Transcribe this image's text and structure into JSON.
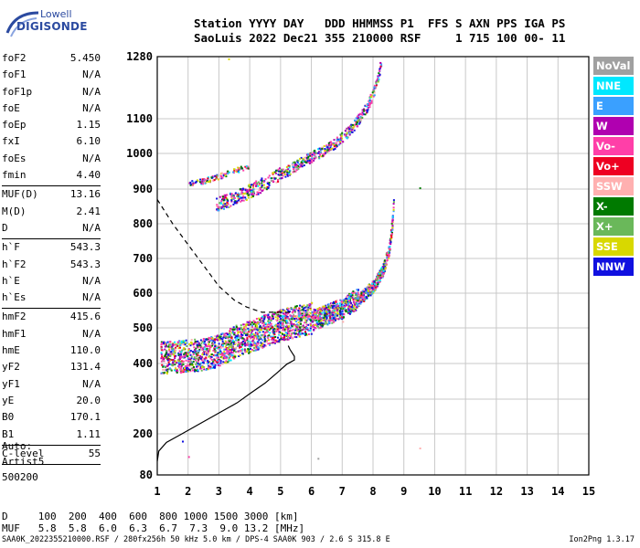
{
  "logo": {
    "line1": "Lowell",
    "line2": "DIGISONDE"
  },
  "header": {
    "line1": "Station YYYY DAY   DDD HHMMSS P1  FFS S AXN PPS IGA PS",
    "line2": "SaoLuis 2022 Dec21 355 210000 RSF     1 715 100 00- 11"
  },
  "params": {
    "group1": [
      {
        "name": "foF2",
        "value": "5.450"
      },
      {
        "name": "foF1",
        "value": "N/A"
      },
      {
        "name": "foF1p",
        "value": "N/A"
      },
      {
        "name": "foE",
        "value": "N/A"
      },
      {
        "name": "foEp",
        "value": "1.15"
      },
      {
        "name": "fxI",
        "value": "6.10"
      },
      {
        "name": "foEs",
        "value": "N/A"
      },
      {
        "name": "fmin",
        "value": "4.40"
      }
    ],
    "group2": [
      {
        "name": "MUF(D)",
        "value": "13.16"
      },
      {
        "name": "M(D)",
        "value": "2.41"
      },
      {
        "name": "D",
        "value": "N/A"
      }
    ],
    "group3": [
      {
        "name": "h`F",
        "value": "543.3"
      },
      {
        "name": "h`F2",
        "value": "543.3"
      },
      {
        "name": "h`E",
        "value": "N/A"
      },
      {
        "name": "h`Es",
        "value": "N/A"
      }
    ],
    "group4": [
      {
        "name": "hmF2",
        "value": "415.6"
      },
      {
        "name": "hmF1",
        "value": "N/A"
      },
      {
        "name": "hmE",
        "value": "110.0"
      },
      {
        "name": "yF2",
        "value": "131.4"
      },
      {
        "name": "yF1",
        "value": "N/A"
      },
      {
        "name": "yE",
        "value": "20.0"
      },
      {
        "name": "B0",
        "value": "170.1"
      },
      {
        "name": "B1",
        "value": "1.11"
      }
    ],
    "group5": [
      {
        "name": "C-level",
        "value": "55"
      }
    ]
  },
  "auto": {
    "line1": "Auto:",
    "line2": "Artist5",
    "line3": "500200"
  },
  "dmuf": {
    "line1": "D     100  200  400  600  800 1000 1500 3000 [km]",
    "line2": "MUF   5.8  5.8  6.0  6.3  6.7  7.3  9.0 13.2 [MHz]"
  },
  "footer": "SAA0K_2022355210000.RSF / 280fx256h 50 kHz 5.0 km / DPS-4 SAA0K 903 / 2.6 S 315.8 E",
  "version": "Ion2Png 1.3.17",
  "legend": [
    {
      "label": "NoVal",
      "color": "#a0a0a0"
    },
    {
      "label": "NNE",
      "color": "#00e8ff"
    },
    {
      "label": "E",
      "color": "#3aa0ff"
    },
    {
      "label": "W",
      "color": "#b000b0"
    },
    {
      "label": "Vo-",
      "color": "#ff3fa8"
    },
    {
      "label": "Vo+",
      "color": "#ee0022"
    },
    {
      "label": "SSW",
      "color": "#ffb0b0"
    },
    {
      "label": "X-",
      "color": "#007a00"
    },
    {
      "label": "X+",
      "color": "#6ab85a"
    },
    {
      "label": "SSE",
      "color": "#d8d800"
    },
    {
      "label": "NNW",
      "color": "#1010e0"
    }
  ],
  "chart_data": {
    "type": "scatter",
    "title": "",
    "xlabel": "",
    "ylabel": "",
    "x_ticks": [
      1,
      2,
      3,
      4,
      5,
      6,
      7,
      8,
      9,
      10,
      11,
      12,
      13,
      14,
      15
    ],
    "y_ticks": [
      80,
      200,
      300,
      400,
      500,
      600,
      700,
      800,
      900,
      1000,
      1100,
      1280
    ],
    "xlim": [
      1,
      15
    ],
    "ylim": [
      80,
      1280
    ],
    "grid": true,
    "traces": {
      "F2_ordinary": [
        [
          1.1,
          400
        ],
        [
          1.5,
          402
        ],
        [
          2.0,
          405
        ],
        [
          2.5,
          410
        ],
        [
          3.0,
          420
        ],
        [
          3.5,
          445
        ],
        [
          4.0,
          460
        ],
        [
          4.5,
          478
        ],
        [
          5.0,
          492
        ],
        [
          5.5,
          503
        ],
        [
          6.0,
          512
        ],
        [
          6.5,
          528
        ],
        [
          7.0,
          548
        ],
        [
          7.5,
          575
        ],
        [
          8.0,
          615
        ],
        [
          8.3,
          660
        ],
        [
          8.5,
          720
        ],
        [
          8.6,
          790
        ],
        [
          8.65,
          850
        ]
      ],
      "F2_second_hop": [
        [
          2.9,
          850
        ],
        [
          3.3,
          862
        ],
        [
          3.8,
          880
        ],
        [
          4.3,
          902
        ],
        [
          4.8,
          928
        ],
        [
          5.3,
          952
        ],
        [
          5.8,
          978
        ],
        [
          6.3,
          1000
        ],
        [
          6.8,
          1028
        ],
        [
          7.3,
          1068
        ],
        [
          7.8,
          1130
        ],
        [
          8.1,
          1195
        ],
        [
          8.25,
          1260
        ]
      ],
      "F2_second_hop_branch": [
        [
          2.0,
          915
        ],
        [
          2.5,
          922
        ],
        [
          3.0,
          935
        ],
        [
          3.5,
          950
        ],
        [
          4.0,
          965
        ]
      ]
    },
    "profile_solid": [
      [
        1.0,
        120
      ],
      [
        1.05,
        150
      ],
      [
        1.3,
        175
      ],
      [
        1.8,
        200
      ],
      [
        2.3,
        225
      ],
      [
        2.8,
        250
      ],
      [
        3.2,
        270
      ],
      [
        3.6,
        290
      ],
      [
        4.0,
        315
      ],
      [
        4.5,
        345
      ],
      [
        4.9,
        375
      ],
      [
        5.2,
        398
      ],
      [
        5.45,
        410
      ],
      [
        5.45,
        420
      ],
      [
        5.3,
        440
      ],
      [
        5.25,
        450
      ]
    ],
    "profile_dashed": [
      [
        1.0,
        870
      ],
      [
        1.5,
        800
      ],
      [
        2.0,
        740
      ],
      [
        2.5,
        680
      ],
      [
        3.0,
        620
      ],
      [
        3.5,
        580
      ],
      [
        3.9,
        560
      ],
      [
        4.4,
        545
      ],
      [
        5.0,
        545
      ],
      [
        5.4,
        545
      ]
    ],
    "stray_points": [
      [
        9.5,
        160
      ],
      [
        6.2,
        130
      ],
      [
        2.0,
        135
      ],
      [
        1.8,
        180
      ],
      [
        9.5,
        905
      ],
      [
        3.3,
        1275
      ],
      [
        7.0,
        520
      ]
    ]
  }
}
